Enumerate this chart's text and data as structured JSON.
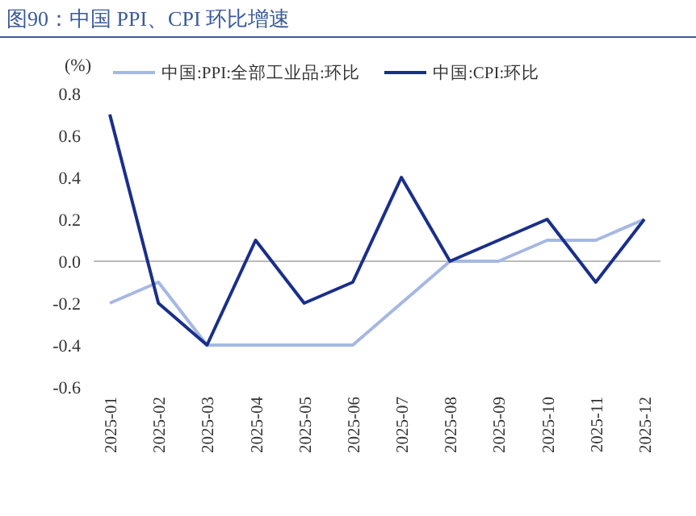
{
  "chart_data": {
    "type": "line",
    "title": "图90：中国 PPI、CPI 环比增速",
    "ylabel": "(%)",
    "categories": [
      "2025-01",
      "2025-02",
      "2025-03",
      "2025-04",
      "2025-05",
      "2025-06",
      "2025-07",
      "2025-08",
      "2025-09",
      "2025-10",
      "2025-11",
      "2025-12"
    ],
    "series": [
      {
        "name": "中国:PPI:全部工业品:环比",
        "color": "#a5b8e3",
        "values": [
          -0.2,
          -0.1,
          -0.4,
          -0.4,
          -0.4,
          -0.4,
          -0.2,
          0.0,
          0.0,
          0.1,
          0.1,
          0.2
        ]
      },
      {
        "name": "中国:CPI:环比",
        "color": "#1a2f8a",
        "values": [
          0.7,
          -0.2,
          -0.4,
          0.1,
          -0.2,
          -0.1,
          0.4,
          0.0,
          0.1,
          0.2,
          -0.1,
          0.2
        ]
      }
    ],
    "ylim": [
      -0.6,
      0.8
    ],
    "yticks": [
      {
        "value": -0.6,
        "label": "-0.6"
      },
      {
        "value": -0.4,
        "label": "-0.4"
      },
      {
        "value": -0.2,
        "label": "-0.2"
      },
      {
        "value": 0,
        "label": "0.0"
      },
      {
        "value": 0.2,
        "label": "0.2"
      },
      {
        "value": 0.4,
        "label": "0.4"
      },
      {
        "value": 0.6,
        "label": "0.6"
      },
      {
        "value": 0.8,
        "label": "0.8"
      }
    ],
    "legend": "top",
    "marker": "none",
    "line_style": "solid"
  }
}
